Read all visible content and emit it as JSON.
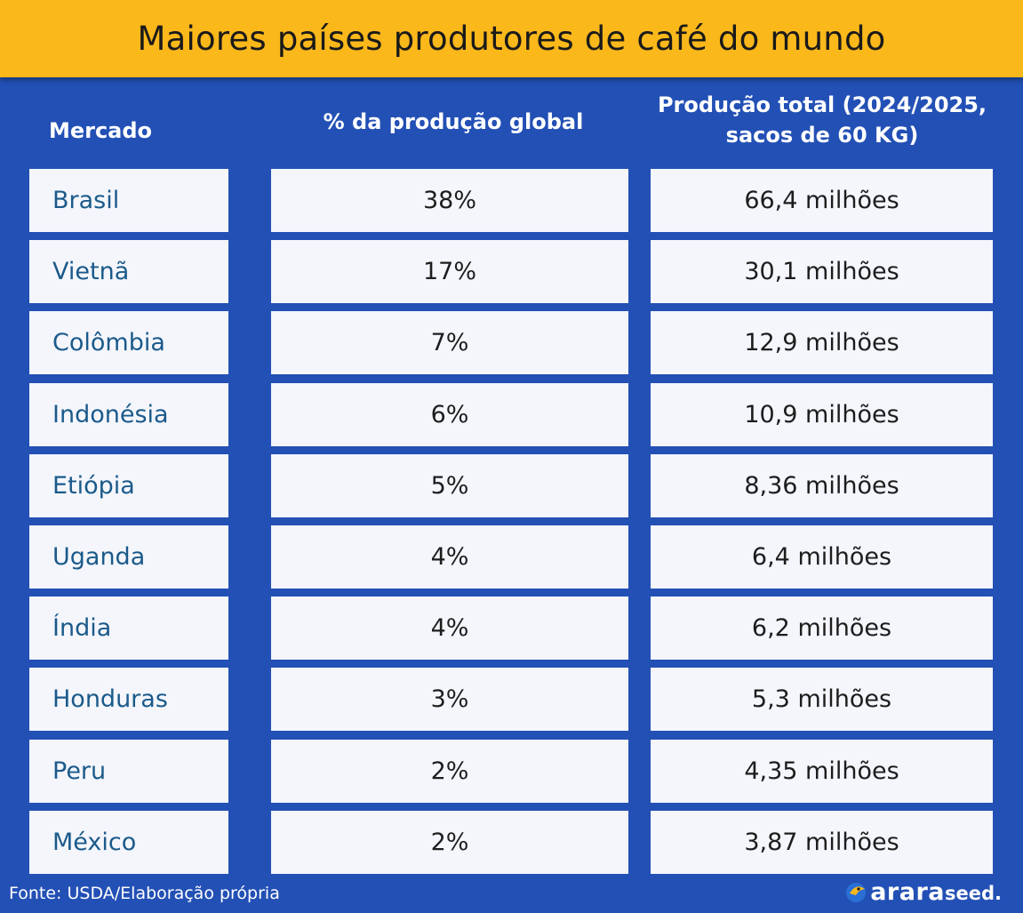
{
  "title": "Maiores países produtores de café do mundo",
  "headers": {
    "mercado": "Mercado",
    "pct": "% da produção global",
    "prod_line1": "Produção total (2024/2025,",
    "prod_line2": "sacos de 60 KG)"
  },
  "chart_data": {
    "type": "table",
    "columns": [
      "Mercado",
      "% da produção global",
      "Produção total (2024/2025, sacos de 60 KG)"
    ],
    "rows": [
      {
        "mercado": "Brasil",
        "pct": "38%",
        "prod": "66,4 milhões"
      },
      {
        "mercado": "Vietnã",
        "pct": "17%",
        "prod": "30,1 milhões"
      },
      {
        "mercado": "Colômbia",
        "pct": "7%",
        "prod": "12,9 milhões"
      },
      {
        "mercado": "Indonésia",
        "pct": "6%",
        "prod": "10,9 milhões"
      },
      {
        "mercado": "Etiópia",
        "pct": "5%",
        "prod": "8,36 milhões"
      },
      {
        "mercado": "Uganda",
        "pct": "4%",
        "prod": "6,4 milhões"
      },
      {
        "mercado": "Índia",
        "pct": "4%",
        "prod": "6,2 milhões"
      },
      {
        "mercado": "Honduras",
        "pct": "3%",
        "prod": "5,3 milhões"
      },
      {
        "mercado": "Peru",
        "pct": "2%",
        "prod": "4,35 milhões"
      },
      {
        "mercado": "México",
        "pct": "2%",
        "prod": "3,87 milhões"
      }
    ]
  },
  "footer": {
    "source": "Fonte: USDA/Elaboração própria",
    "brand_main": "arara",
    "brand_sub": "seed."
  },
  "colors": {
    "background": "#2350b5",
    "title_bar": "#fbb81b",
    "cell": "#f4f6fc",
    "country_text": "#1b5a8a"
  },
  "icons": {
    "brand_logo": "arara-bird-logo-icon"
  }
}
